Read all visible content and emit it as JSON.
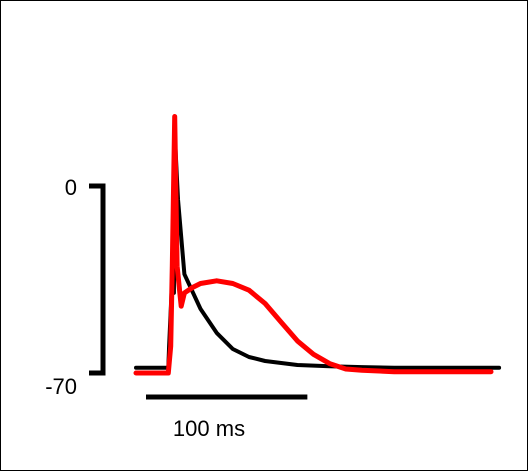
{
  "chart_data": {
    "type": "line",
    "y_scale_bar": {
      "top_label": "0",
      "bottom_label": "-70",
      "ylim": [
        -70,
        0
      ]
    },
    "x_scale_bar": {
      "label": "100 ms",
      "length": 100
    },
    "xlim": [
      -20,
      210
    ],
    "ylim": [
      -75,
      28
    ],
    "series": [
      {
        "color": "#000000",
        "x": [
          -20,
          0,
          0.5,
          2,
          3.5,
          4,
          6,
          10,
          20,
          30,
          40,
          50,
          60,
          80,
          100,
          120,
          140,
          160,
          180,
          200,
          205
        ],
        "y": [
          -68,
          -68,
          -60,
          -40,
          -40,
          20,
          -5,
          -33,
          -46,
          -55,
          -61,
          -64,
          -65.5,
          -67,
          -67.5,
          -67.8,
          -68,
          -68,
          -68,
          -68,
          -68
        ]
      },
      {
        "color": "#ff0000",
        "x": [
          -20,
          0,
          1.5,
          2.5,
          4,
          5.5,
          8,
          10,
          15,
          20,
          30,
          40,
          50,
          60,
          70,
          80,
          90,
          100,
          110,
          120,
          140,
          160,
          180,
          200
        ],
        "y": [
          -70,
          -70,
          -60,
          -30,
          26,
          -30,
          -45,
          -40,
          -38,
          -36.5,
          -35.5,
          -36.5,
          -39,
          -44,
          -51,
          -58,
          -63,
          -66.5,
          -68.5,
          -69,
          -69.5,
          -69.5,
          -69.5,
          -69.5
        ]
      }
    ]
  }
}
